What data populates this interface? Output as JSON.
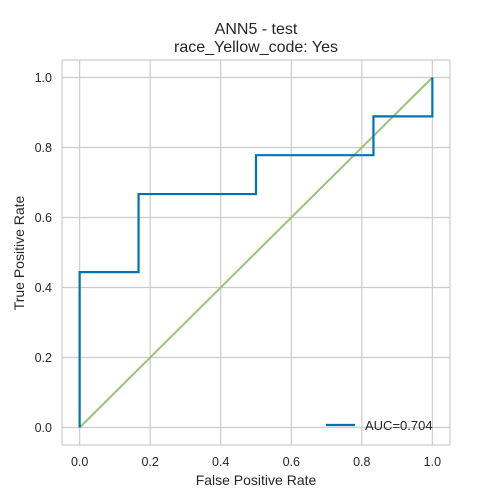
{
  "chart_data": {
    "type": "line",
    "title": "ANN5 - test",
    "subtitle": "race_Yellow_code: Yes",
    "xlabel": "False Positive Rate",
    "ylabel": "True Positive Rate",
    "xlim": [
      -0.05,
      1.05
    ],
    "ylim": [
      -0.05,
      1.05
    ],
    "xticks": [
      "0.0",
      "0.2",
      "0.4",
      "0.6",
      "0.8",
      "1.0"
    ],
    "yticks": [
      "0.0",
      "0.2",
      "0.4",
      "0.6",
      "0.8",
      "1.0"
    ],
    "grid": true,
    "legend_position": "lower-right",
    "series": [
      {
        "name": "AUC=0.704",
        "color": "#0072b2",
        "x": [
          0.0,
          0.0,
          0.167,
          0.167,
          0.5,
          0.5,
          0.833,
          0.833,
          1.0,
          1.0
        ],
        "y": [
          0.0,
          0.444,
          0.444,
          0.667,
          0.667,
          0.778,
          0.778,
          0.889,
          0.889,
          1.0
        ]
      },
      {
        "color": "#98c379",
        "x": [
          0.0,
          1.0
        ],
        "y": [
          0.0,
          1.0
        ]
      }
    ]
  },
  "colors": {
    "roc_line": "#0072b2",
    "diagonal": "#98c379",
    "grid": "#cccccc",
    "text": "#262626"
  }
}
